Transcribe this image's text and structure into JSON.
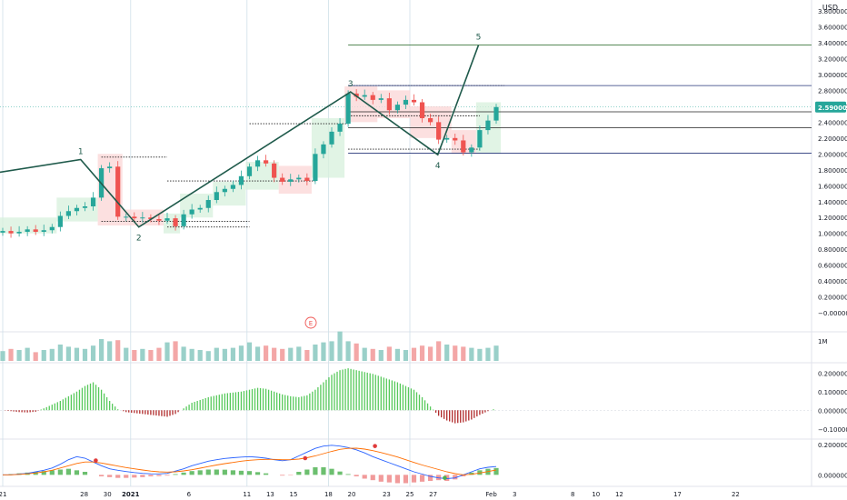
{
  "currency": "USD",
  "events_badge": "E",
  "chart_data": [
    {
      "type": "candlestick",
      "pane": "price",
      "ylim": [
        -0.05,
        3.95
      ],
      "price_ticks": [
        "3.800000",
        "3.600000",
        "3.400000",
        "3.200000",
        "3.000000",
        "2.800000",
        "2.600000",
        "2.400000",
        "2.200000",
        "2.000000",
        "1.800000",
        "1.600000",
        "1.400000",
        "1.200000",
        "1.000000",
        "0.800000",
        "0.600000",
        "0.400000",
        "0.200000",
        "−0.000000"
      ],
      "price_tick_values": [
        3.8,
        3.6,
        3.4,
        3.2,
        3.0,
        2.8,
        2.6,
        2.4,
        2.2,
        2.0,
        1.8,
        1.6,
        1.4,
        1.2,
        1.0,
        0.8,
        0.6,
        0.4,
        0.2,
        0.0
      ],
      "last_price": "2.590000",
      "last_price_value": 2.59,
      "x_ticks": [
        {
          "label": "21",
          "day": 21
        },
        {
          "label": "28",
          "day": 28
        },
        {
          "label": "30",
          "day": 30
        },
        {
          "label": "2021",
          "day": 32
        },
        {
          "label": "6",
          "day": 37
        },
        {
          "label": "11",
          "day": 42
        },
        {
          "label": "13",
          "day": 44
        },
        {
          "label": "15",
          "day": 46
        },
        {
          "label": "18",
          "day": 49
        },
        {
          "label": "20",
          "day": 51
        },
        {
          "label": "23",
          "day": 54
        },
        {
          "label": "25",
          "day": 56
        },
        {
          "label": "27",
          "day": 58
        },
        {
          "label": "Feb",
          "day": 63
        },
        {
          "label": "3",
          "day": 65
        },
        {
          "label": "8",
          "day": 70
        },
        {
          "label": "10",
          "day": 72
        },
        {
          "label": "12",
          "day": 74
        },
        {
          "label": "17",
          "day": 79
        },
        {
          "label": "22",
          "day": 84
        }
      ],
      "closes": [
        1.03,
        1.0,
        1.02,
        1.05,
        1.02,
        1.04,
        1.08,
        1.22,
        1.28,
        1.32,
        1.34,
        1.45,
        1.82,
        1.84,
        1.21,
        1.21,
        1.19,
        1.2,
        1.18,
        1.16,
        1.19,
        1.09,
        1.24,
        1.3,
        1.32,
        1.42,
        1.52,
        1.56,
        1.61,
        1.72,
        1.84,
        1.92,
        1.88,
        1.7,
        1.65,
        1.68,
        1.7,
        1.66,
        2.0,
        2.12,
        2.28,
        2.38,
        2.76,
        2.72,
        2.74,
        2.68,
        2.7,
        2.55,
        2.62,
        2.68,
        2.65,
        2.45,
        2.4,
        2.18,
        2.2,
        2.17,
        2.02,
        2.08,
        2.3,
        2.42,
        2.59
      ],
      "wave": [
        {
          "label": "",
          "day": 16,
          "price": 1.66
        },
        {
          "label": "1",
          "day": 27.7,
          "price": 1.93
        },
        {
          "label": "2",
          "day": 32.7,
          "price": 1.08
        },
        {
          "label": "3",
          "day": 50.9,
          "price": 2.78
        },
        {
          "label": "4",
          "day": 58.4,
          "price": 1.99
        },
        {
          "label": "5",
          "day": 61.9,
          "price": 3.37
        }
      ],
      "fib_levels": [
        {
          "price": 3.37,
          "color": "#3f7a3f"
        },
        {
          "price": 2.86,
          "color": "#26357a"
        },
        {
          "price": 2.53,
          "color": "#222222"
        },
        {
          "price": 2.33,
          "color": "#222222"
        },
        {
          "price": 2.01,
          "color": "#26357a"
        }
      ]
    },
    {
      "type": "bar",
      "pane": "volume",
      "label": "1M",
      "values": [
        0.45,
        0.55,
        0.5,
        0.6,
        0.4,
        0.5,
        0.55,
        0.75,
        0.65,
        0.6,
        0.55,
        0.7,
        1.0,
        0.9,
        0.95,
        0.6,
        0.5,
        0.55,
        0.5,
        0.6,
        0.85,
        0.9,
        0.65,
        0.55,
        0.5,
        0.45,
        0.6,
        0.55,
        0.6,
        0.7,
        0.85,
        0.65,
        0.7,
        0.6,
        0.55,
        0.6,
        0.65,
        0.5,
        0.75,
        0.85,
        0.9,
        1.35,
        0.9,
        0.8,
        0.6,
        0.55,
        0.5,
        0.65,
        0.55,
        0.5,
        0.6,
        0.7,
        0.65,
        0.9,
        0.75,
        0.7,
        0.65,
        0.6,
        0.55,
        0.6,
        0.7
      ]
    },
    {
      "type": "histogram",
      "pane": "oscillator",
      "ylim": [
        -0.15,
        0.25
      ],
      "ticks": [
        "0.200000",
        "0.100000",
        "0.000000",
        "−0.100000"
      ],
      "tick_values": [
        0.2,
        0.1,
        0.0,
        -0.1
      ],
      "values": [
        0.0,
        -0.005,
        -0.01,
        -0.012,
        -0.008,
        0.01,
        0.03,
        0.05,
        0.075,
        0.1,
        0.13,
        0.15,
        0.11,
        0.05,
        0.005,
        -0.01,
        -0.015,
        -0.02,
        -0.025,
        -0.03,
        -0.035,
        -0.02,
        0.01,
        0.04,
        0.055,
        0.07,
        0.08,
        0.09,
        0.095,
        0.1,
        0.11,
        0.12,
        0.115,
        0.1,
        0.085,
        0.075,
        0.07,
        0.08,
        0.11,
        0.15,
        0.19,
        0.215,
        0.225,
        0.215,
        0.205,
        0.195,
        0.18,
        0.165,
        0.15,
        0.13,
        0.11,
        0.07,
        0.02,
        -0.03,
        -0.055,
        -0.07,
        -0.065,
        -0.05,
        -0.025,
        -0.005,
        0.01
      ]
    },
    {
      "type": "macd",
      "pane": "macd",
      "ylim": [
        -0.07,
        0.23
      ],
      "ticks": [
        "0.200000",
        "0.000000"
      ],
      "tick_values": [
        0.2,
        0.0
      ],
      "macd_line": [
        0.0,
        0.0,
        0.005,
        0.01,
        0.02,
        0.03,
        0.045,
        0.07,
        0.1,
        0.12,
        0.11,
        0.085,
        0.06,
        0.04,
        0.03,
        0.022,
        0.015,
        0.01,
        0.007,
        0.006,
        0.01,
        0.025,
        0.04,
        0.06,
        0.075,
        0.09,
        0.1,
        0.108,
        0.113,
        0.117,
        0.12,
        0.116,
        0.11,
        0.1,
        0.093,
        0.1,
        0.125,
        0.15,
        0.175,
        0.19,
        0.195,
        0.19,
        0.18,
        0.165,
        0.145,
        0.12,
        0.1,
        0.08,
        0.06,
        0.04,
        0.02,
        0.005,
        -0.01,
        -0.02,
        -0.025,
        -0.02,
        0.0,
        0.02,
        0.04,
        0.05,
        0.055
      ],
      "signal_line": [
        0.0,
        0.0,
        0.003,
        0.007,
        0.012,
        0.02,
        0.03,
        0.045,
        0.06,
        0.075,
        0.085,
        0.085,
        0.078,
        0.068,
        0.058,
        0.048,
        0.04,
        0.032,
        0.025,
        0.02,
        0.018,
        0.02,
        0.026,
        0.034,
        0.044,
        0.055,
        0.065,
        0.074,
        0.082,
        0.09,
        0.096,
        0.1,
        0.102,
        0.102,
        0.1,
        0.1,
        0.104,
        0.113,
        0.125,
        0.14,
        0.155,
        0.168,
        0.175,
        0.176,
        0.17,
        0.16,
        0.147,
        0.133,
        0.118,
        0.1,
        0.082,
        0.065,
        0.05,
        0.035,
        0.02,
        0.008,
        0.0,
        0.004,
        0.012,
        0.022,
        0.032
      ],
      "histogram": [
        0.0,
        0.005,
        0.01,
        0.015,
        0.02,
        0.025,
        0.03,
        0.035,
        0.04,
        0.03,
        0.02,
        0.0,
        -0.01,
        -0.015,
        -0.02,
        -0.02,
        -0.018,
        -0.015,
        -0.01,
        -0.008,
        -0.005,
        0.005,
        0.015,
        0.025,
        0.03,
        0.035,
        0.035,
        0.034,
        0.03,
        0.027,
        0.025,
        0.018,
        0.01,
        0.0,
        -0.005,
        -0.003,
        0.02,
        0.035,
        0.05,
        0.05,
        0.04,
        0.022,
        0.005,
        -0.01,
        -0.025,
        -0.035,
        -0.045,
        -0.05,
        -0.055,
        -0.055,
        -0.05,
        -0.045,
        -0.04,
        -0.035,
        -0.04,
        -0.03,
        -0.01,
        0.015,
        0.03,
        0.04,
        0.045
      ],
      "cross_markers": [
        {
          "day": 29,
          "value": 0.095,
          "color": "#e03b3b"
        },
        {
          "day": 47,
          "value": 0.11,
          "color": "#e03b3b"
        },
        {
          "day": 53,
          "value": 0.19,
          "color": "#e03b3b"
        },
        {
          "day": 59,
          "value": -0.02,
          "color": "#4caf50"
        }
      ]
    }
  ],
  "colors": {
    "up": "#26a69a",
    "down": "#ef5350",
    "wave": "#1f5a4b",
    "axis_text": "#131722",
    "grid": "#eef0f3",
    "last_price_bg": "#26a69a",
    "green_zone": "#d7f0dc",
    "red_zone": "#fbd6d6"
  }
}
